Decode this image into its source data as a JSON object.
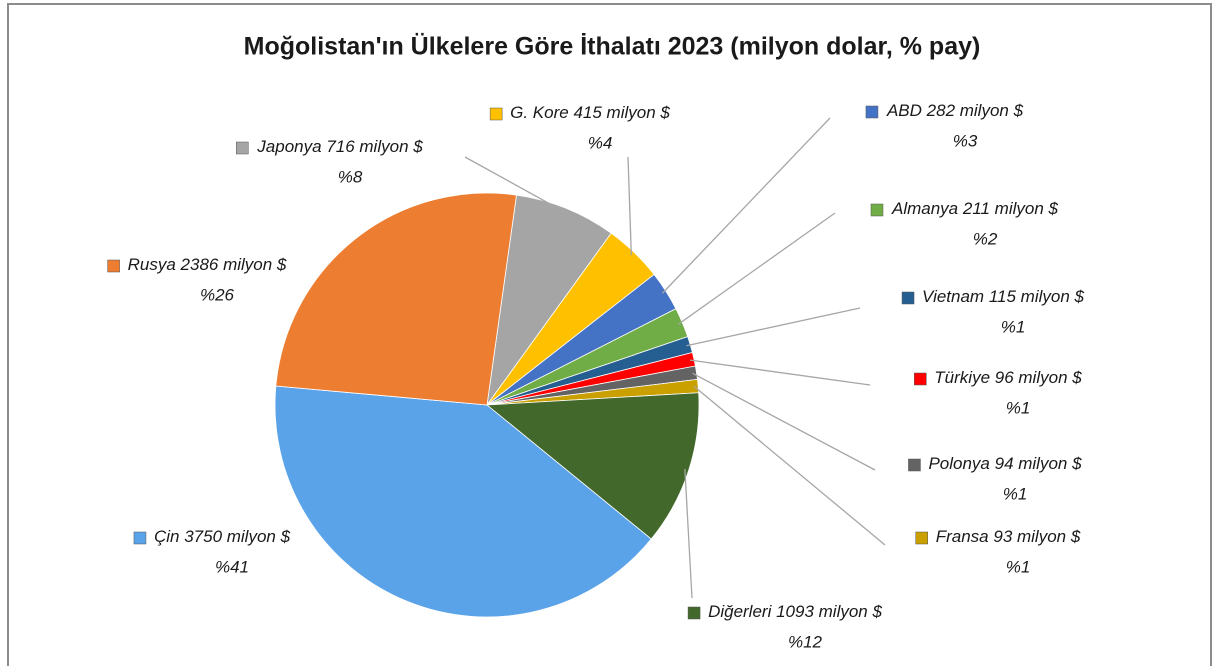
{
  "chart_data": {
    "type": "pie",
    "title": "Moğolistan'ın Ülkelere Göre İthalatı 2023 (milyon dolar, % pay)",
    "categories": [
      "Japonya",
      "G. Kore",
      "ABD",
      "Almanya",
      "Vietnam",
      "Türkiye",
      "Polonya",
      "Fransa",
      "Diğerleri",
      "Çin",
      "Rusya"
    ],
    "values": [
      716,
      415,
      282,
      211,
      115,
      96,
      94,
      93,
      1093,
      3750,
      2386
    ],
    "value_labels": [
      "716 milyon $",
      "415 milyon $",
      "282 milyon $",
      "211 milyon $",
      "115 milyon $",
      "96 milyon $",
      "94 milyon $",
      "93 milyon $",
      "1093 milyon $",
      "3750 milyon $",
      "2386 milyon $"
    ],
    "percent_labels": [
      "%8",
      "%4",
      "%3",
      "%2",
      "%1",
      "%1",
      "%1",
      "%1",
      "%12",
      "%41",
      "%26"
    ],
    "colors": [
      "#a5a5a5",
      "#ffc000",
      "#4472c4",
      "#70ad47",
      "#255e91",
      "#ff0000",
      "#636363",
      "#c9a000",
      "#43682b",
      "#5ba3e8",
      "#ed7d31"
    ]
  }
}
